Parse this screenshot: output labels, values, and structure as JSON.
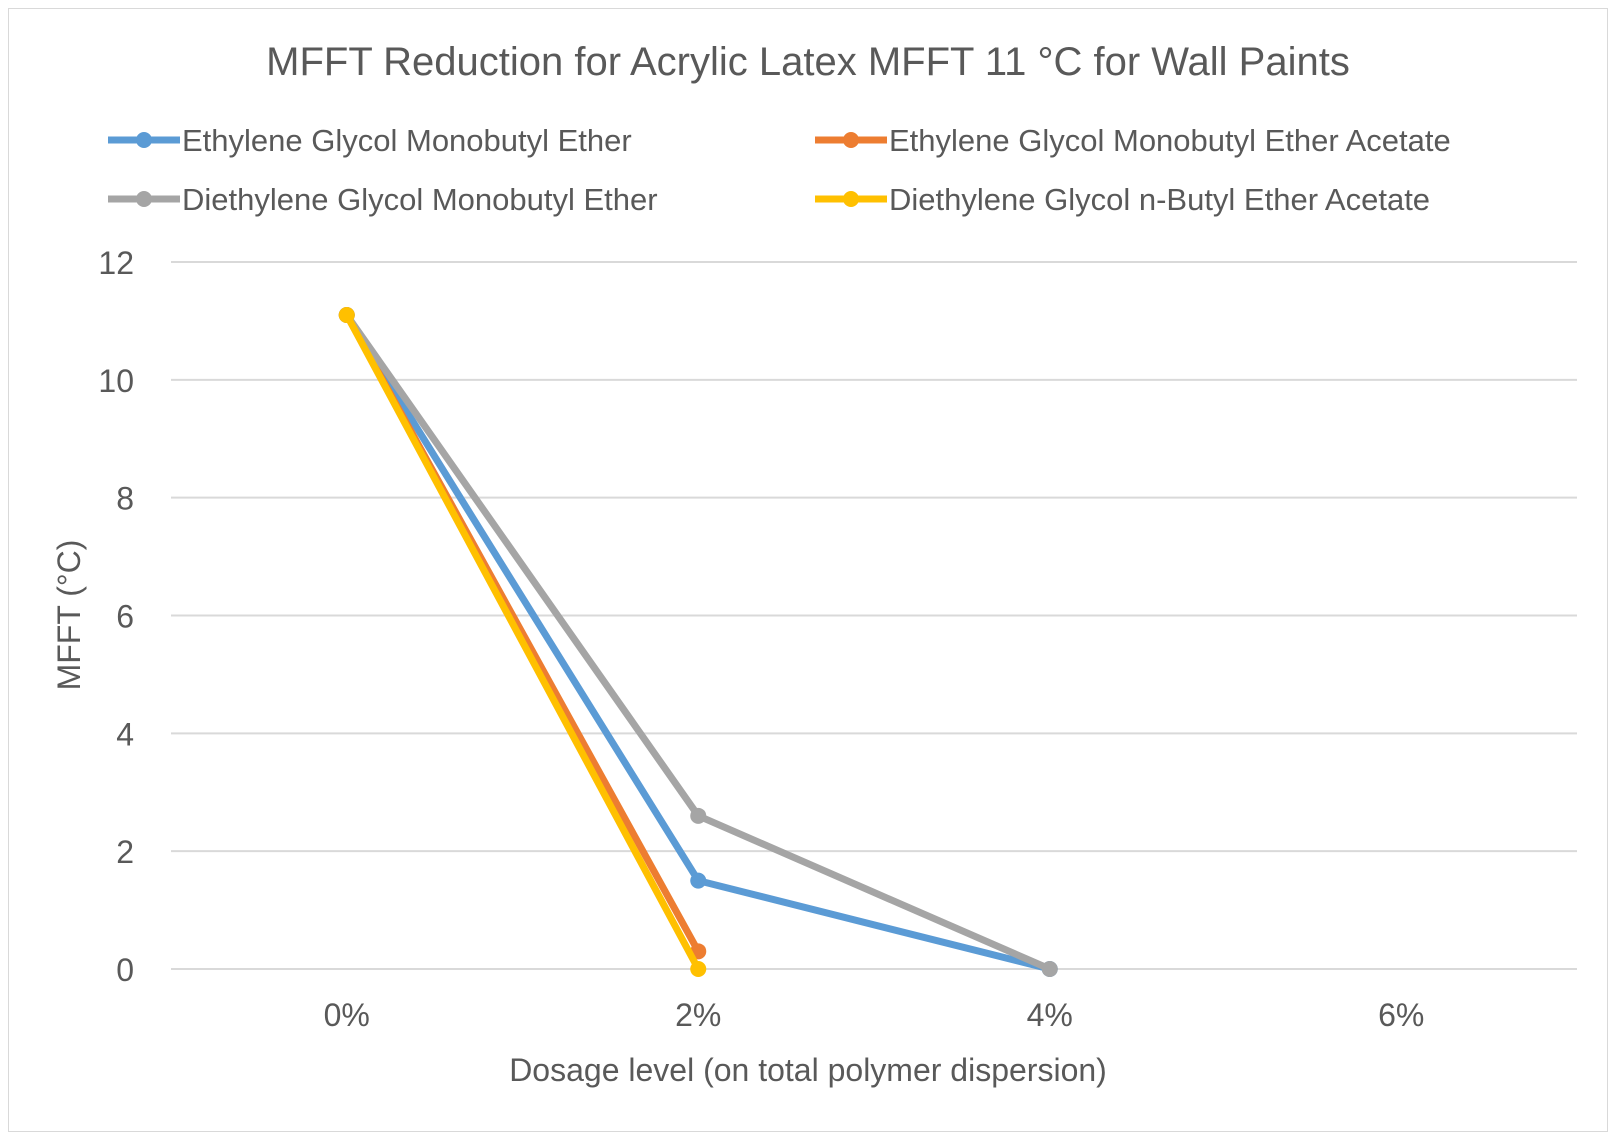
{
  "chart_data": {
    "type": "line",
    "title": "MFFT Reduction for Acrylic Latex MFFT 11 °C for Wall Paints",
    "xlabel": "Dosage level (on total polymer dispersion)",
    "ylabel": "MFFT (°C)",
    "categories": [
      "0%",
      "2%",
      "4%",
      "6%"
    ],
    "ylim": [
      0,
      12
    ],
    "yticks": [
      0,
      2,
      4,
      6,
      8,
      10,
      12
    ],
    "grid": true,
    "legend_position": "top",
    "series": [
      {
        "name": "Ethylene Glycol Monobutyl Ether",
        "color": "#5b9bd5",
        "values": [
          11.1,
          1.5,
          0,
          null
        ]
      },
      {
        "name": "Ethylene Glycol Monobutyl Ether Acetate",
        "color": "#ed7d31",
        "values": [
          11.1,
          0.3,
          null,
          null
        ]
      },
      {
        "name": "Diethylene Glycol Monobutyl Ether",
        "color": "#a5a5a5",
        "values": [
          11.1,
          2.6,
          0,
          null
        ]
      },
      {
        "name": "Diethylene Glycol n-Butyl Ether Acetate",
        "color": "#ffc000",
        "values": [
          11.1,
          0,
          null,
          null
        ]
      }
    ]
  }
}
